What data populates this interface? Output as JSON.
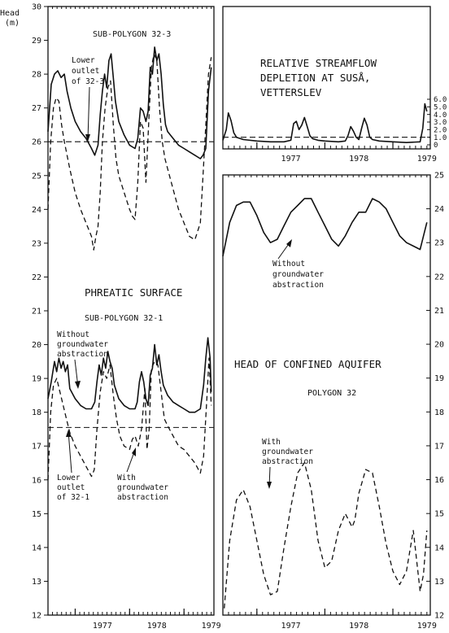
{
  "figure": {
    "y_axis_title": "Head",
    "y_axis_unit": "(m)",
    "x_tick_labels": [
      "1977",
      "1978",
      "1979"
    ]
  },
  "left_panel": {
    "heading": "PHREATIC SURFACE",
    "sub_top": "SUB-POLYGON 32-3",
    "sub_bottom": "SUB-POLYGON 32-1",
    "annotations": {
      "lower_outlet_top": [
        "Lower",
        "outlet",
        "of 32-3"
      ],
      "without_abstraction": [
        "Without",
        "groundwater",
        "abstraction"
      ],
      "lower_outlet_bottom": [
        "Lower",
        "outlet",
        "of 32-1"
      ],
      "with_abstraction": [
        "With",
        "groundwater",
        "abstraction"
      ]
    }
  },
  "right_top_panel": {
    "title_lines": [
      "RELATIVE STREAMFLOW",
      "DEPLETION AT SUSÅ,",
      "VETTERSLEV"
    ]
  },
  "right_bottom_panel": {
    "title": "HEAD OF CONFINED AQUIFER",
    "subtitle": "POLYGON 32",
    "annotations": {
      "without_abstraction": [
        "Without",
        "groundwater",
        "abstraction"
      ],
      "with_abstraction": [
        "With",
        "groundwater",
        "abstraction"
      ]
    }
  },
  "chart_data": [
    {
      "type": "line",
      "title": "PHREATIC SURFACE",
      "ylabel": "Head (m)",
      "ylim": [
        12,
        30
      ],
      "x_unit": "year",
      "x_ticks": [
        1977,
        1978,
        1979
      ],
      "subplots": [
        {
          "name": "SUB-POLYGON 32-3",
          "reference_line": {
            "label": "Lower outlet of 32-3",
            "y": 26.0
          },
          "series": [
            {
              "name": "Without groundwater abstraction",
              "style": "solid",
              "x": [
                1976.5,
                1976.56,
                1976.62,
                1976.68,
                1976.74,
                1976.8,
                1976.85,
                1976.92,
                1977.0,
                1977.1,
                1977.2,
                1977.3,
                1977.36,
                1977.42,
                1977.46,
                1977.5,
                1977.54,
                1977.58,
                1977.62,
                1977.66,
                1977.7,
                1977.74,
                1977.8,
                1977.9,
                1978.0,
                1978.1,
                1978.15,
                1978.2,
                1978.25,
                1978.3,
                1978.34,
                1978.38,
                1978.42,
                1978.46,
                1978.5,
                1978.54,
                1978.58,
                1978.62,
                1978.66,
                1978.7,
                1978.8,
                1978.9,
                1979.0,
                1979.1,
                1979.2,
                1979.3,
                1979.35,
                1979.4,
                1979.45,
                1979.5
              ],
              "y": [
                26.3,
                27.7,
                28.0,
                28.1,
                27.9,
                28.0,
                27.5,
                27.0,
                26.6,
                26.3,
                26.1,
                25.8,
                25.6,
                25.9,
                26.8,
                27.5,
                28.0,
                27.6,
                28.4,
                28.6,
                27.9,
                27.2,
                26.6,
                26.2,
                25.9,
                25.8,
                26.1,
                27.0,
                26.9,
                26.6,
                26.9,
                28.2,
                28.0,
                28.8,
                28.4,
                28.6,
                28.0,
                27.1,
                26.5,
                26.3,
                26.1,
                25.9,
                25.8,
                25.7,
                25.6,
                25.5,
                25.6,
                25.8,
                27.5,
                28.2
              ]
            },
            {
              "name": "With groundwater abstraction",
              "style": "dashed",
              "x": [
                1976.5,
                1976.55,
                1976.6,
                1976.65,
                1976.7,
                1976.75,
                1976.8,
                1976.9,
                1977.0,
                1977.1,
                1977.2,
                1977.3,
                1977.34,
                1977.38,
                1977.42,
                1977.46,
                1977.5,
                1977.55,
                1977.6,
                1977.65,
                1977.7,
                1977.75,
                1977.8,
                1977.9,
                1978.0,
                1978.05,
                1978.1,
                1978.15,
                1978.2,
                1978.25,
                1978.3,
                1978.35,
                1978.4,
                1978.45,
                1978.5,
                1978.55,
                1978.6,
                1978.65,
                1978.7,
                1978.8,
                1978.9,
                1979.0,
                1979.1,
                1979.2,
                1979.3,
                1979.35,
                1979.4,
                1979.45,
                1979.5
              ],
              "y": [
                24.0,
                26.0,
                27.0,
                27.3,
                27.2,
                26.5,
                26.0,
                25.2,
                24.5,
                24.0,
                23.6,
                23.2,
                22.8,
                23.2,
                23.5,
                24.5,
                26.0,
                27.0,
                27.6,
                27.8,
                26.5,
                25.5,
                25.0,
                24.5,
                24.0,
                23.8,
                23.7,
                24.8,
                26.6,
                26.4,
                24.8,
                26.5,
                28.2,
                28.6,
                28.4,
                27.0,
                26.0,
                25.5,
                25.2,
                24.6,
                24.0,
                23.6,
                23.2,
                23.1,
                23.6,
                25.0,
                26.5,
                28.0,
                28.5
              ]
            }
          ]
        },
        {
          "name": "SUB-POLYGON 32-1",
          "reference_line": {
            "label": "Lower outlet of 32-1",
            "y": 17.55
          },
          "series": [
            {
              "name": "Without groundwater abstraction",
              "style": "solid",
              "x": [
                1976.5,
                1976.56,
                1976.62,
                1976.66,
                1976.7,
                1976.74,
                1976.78,
                1976.82,
                1976.86,
                1976.9,
                1977.0,
                1977.1,
                1977.2,
                1977.3,
                1977.36,
                1977.4,
                1977.44,
                1977.48,
                1977.52,
                1977.56,
                1977.6,
                1977.64,
                1977.68,
                1977.72,
                1977.76,
                1977.8,
                1977.9,
                1978.0,
                1978.1,
                1978.14,
                1978.18,
                1978.22,
                1978.26,
                1978.3,
                1978.34,
                1978.38,
                1978.42,
                1978.46,
                1978.5,
                1978.54,
                1978.58,
                1978.62,
                1978.7,
                1978.8,
                1978.9,
                1979.0,
                1979.1,
                1979.2,
                1979.3,
                1979.36,
                1979.4,
                1979.44,
                1979.48,
                1979.5
              ],
              "y": [
                18.4,
                18.9,
                19.5,
                19.2,
                19.6,
                19.3,
                19.5,
                19.2,
                19.4,
                18.7,
                18.4,
                18.2,
                18.1,
                18.1,
                18.3,
                18.9,
                19.4,
                19.1,
                19.6,
                19.3,
                19.8,
                19.5,
                19.3,
                18.8,
                18.6,
                18.4,
                18.2,
                18.1,
                18.1,
                18.3,
                18.9,
                19.2,
                18.9,
                18.4,
                18.2,
                19.1,
                19.3,
                20.0,
                19.4,
                19.7,
                19.2,
                18.8,
                18.5,
                18.3,
                18.2,
                18.1,
                18.0,
                18.0,
                18.1,
                18.8,
                19.6,
                20.2,
                19.6,
                18.6
              ]
            },
            {
              "name": "With groundwater abstraction",
              "style": "dashed",
              "x": [
                1976.5,
                1976.55,
                1976.6,
                1976.66,
                1976.72,
                1976.78,
                1976.84,
                1976.9,
                1977.0,
                1977.1,
                1977.2,
                1977.3,
                1977.35,
                1977.4,
                1977.46,
                1977.52,
                1977.58,
                1977.64,
                1977.7,
                1977.76,
                1977.82,
                1977.9,
                1978.0,
                1978.05,
                1978.1,
                1978.16,
                1978.22,
                1978.28,
                1978.32,
                1978.36,
                1978.4,
                1978.46,
                1978.52,
                1978.58,
                1978.64,
                1978.7,
                1978.8,
                1978.9,
                1979.0,
                1979.1,
                1979.2,
                1979.3,
                1979.36,
                1979.42,
                1979.46,
                1979.5
              ],
              "y": [
                16.0,
                18.0,
                18.8,
                19.0,
                18.6,
                18.2,
                17.8,
                17.4,
                17.0,
                16.7,
                16.4,
                16.1,
                16.3,
                17.5,
                18.6,
                19.2,
                19.0,
                19.4,
                18.5,
                17.8,
                17.3,
                17.0,
                16.9,
                17.2,
                17.3,
                17.0,
                17.5,
                18.7,
                16.9,
                17.5,
                19.3,
                19.5,
                19.4,
                18.6,
                17.8,
                17.6,
                17.3,
                17.0,
                16.9,
                16.7,
                16.5,
                16.2,
                16.7,
                18.4,
                19.6,
                18.2
              ]
            }
          ]
        }
      ]
    },
    {
      "type": "line",
      "title": "RELATIVE STREAMFLOW DEPLETION AT SUSÅ, VETTERSLEV",
      "ylim": [
        0,
        6
      ],
      "y_ticks": [
        0,
        1.0,
        2.0,
        3.0,
        4.0,
        5.0,
        6.0
      ],
      "x_ticks": [
        1977,
        1978,
        1979
      ],
      "reference_line": {
        "y": 1.0,
        "style": "dashed"
      },
      "series": [
        {
          "style": "solid",
          "x": [
            1976.5,
            1976.55,
            1976.58,
            1976.62,
            1976.66,
            1976.7,
            1976.8,
            1977.0,
            1977.2,
            1977.4,
            1977.5,
            1977.54,
            1977.58,
            1977.62,
            1977.66,
            1977.7,
            1977.74,
            1977.78,
            1977.82,
            1977.9,
            1978.0,
            1978.2,
            1978.3,
            1978.34,
            1978.38,
            1978.42,
            1978.46,
            1978.5,
            1978.54,
            1978.58,
            1978.62,
            1978.66,
            1978.7,
            1978.8,
            1979.0,
            1979.2,
            1979.4,
            1979.44,
            1979.47,
            1979.5
          ],
          "y": [
            0.6,
            2.0,
            4.2,
            3.2,
            1.6,
            1.0,
            0.7,
            0.5,
            0.4,
            0.4,
            0.6,
            2.8,
            3.1,
            2.0,
            2.6,
            3.6,
            2.4,
            1.2,
            0.8,
            0.6,
            0.5,
            0.4,
            0.5,
            1.2,
            2.4,
            1.8,
            1.0,
            0.7,
            2.2,
            3.5,
            2.6,
            1.0,
            0.7,
            0.5,
            0.4,
            0.3,
            0.4,
            2.2,
            5.4,
            4.4
          ]
        }
      ]
    },
    {
      "type": "line",
      "title": "HEAD OF CONFINED AQUIFER",
      "subtitle": "POLYGON 32",
      "ylim": [
        12,
        25
      ],
      "y_ticks": [
        12,
        13,
        14,
        15,
        16,
        17,
        18,
        19,
        20,
        21,
        22,
        23,
        24,
        25
      ],
      "x_ticks": [
        1977,
        1978,
        1979
      ],
      "series": [
        {
          "name": "Without groundwater abstraction",
          "style": "solid",
          "x": [
            1976.5,
            1976.6,
            1976.7,
            1976.8,
            1976.9,
            1977.0,
            1977.1,
            1977.2,
            1977.3,
            1977.4,
            1977.5,
            1977.6,
            1977.7,
            1977.8,
            1977.9,
            1978.0,
            1978.1,
            1978.2,
            1978.3,
            1978.4,
            1978.5,
            1978.6,
            1978.7,
            1978.8,
            1978.9,
            1979.0,
            1979.1,
            1979.2,
            1979.3,
            1979.4,
            1979.5
          ],
          "y": [
            22.6,
            23.6,
            24.1,
            24.2,
            24.2,
            23.8,
            23.3,
            23.0,
            23.1,
            23.5,
            23.9,
            24.1,
            24.3,
            24.3,
            23.9,
            23.5,
            23.1,
            22.9,
            23.2,
            23.6,
            23.9,
            23.9,
            24.3,
            24.2,
            24.0,
            23.6,
            23.2,
            23.0,
            22.9,
            22.8,
            23.6
          ]
        },
        {
          "name": "With groundwater abstraction",
          "style": "dashed",
          "x": [
            1976.52,
            1976.6,
            1976.7,
            1976.8,
            1976.9,
            1977.0,
            1977.1,
            1977.2,
            1977.3,
            1977.4,
            1977.5,
            1977.6,
            1977.7,
            1977.8,
            1977.9,
            1978.0,
            1978.1,
            1978.2,
            1978.3,
            1978.4,
            1978.44,
            1978.5,
            1978.6,
            1978.7,
            1978.8,
            1978.9,
            1979.0,
            1979.1,
            1979.2,
            1979.3,
            1979.4,
            1979.45,
            1979.5
          ],
          "y": [
            12.2,
            14.2,
            15.4,
            15.7,
            15.2,
            14.2,
            13.2,
            12.6,
            12.7,
            14.0,
            15.2,
            16.2,
            16.5,
            15.7,
            14.2,
            13.4,
            13.6,
            14.5,
            15.0,
            14.6,
            14.8,
            15.6,
            16.3,
            16.2,
            15.2,
            14.1,
            13.3,
            12.9,
            13.3,
            14.5,
            12.7,
            13.2,
            14.5
          ]
        }
      ]
    }
  ]
}
